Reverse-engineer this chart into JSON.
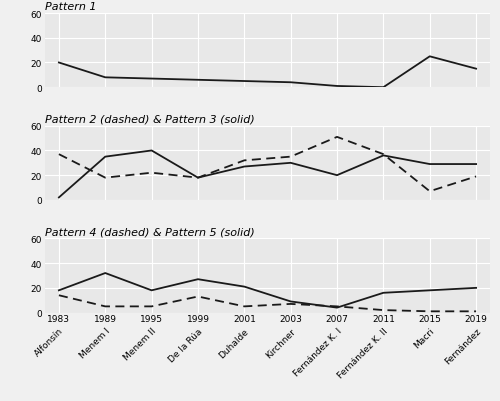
{
  "x_labels": [
    "Alfonsín",
    "Menem I",
    "Menem II",
    "De la Rúa",
    "Duhalde",
    "Kirchner",
    "Fernández K. I",
    "Fernández K. II",
    "Macri",
    "Fernández"
  ],
  "x_years": [
    1983,
    1989,
    1995,
    1999,
    2001,
    2003,
    2007,
    2011,
    2015,
    2019
  ],
  "pattern1": [
    20,
    8,
    7,
    6,
    5,
    4,
    1,
    0,
    25,
    15
  ],
  "pattern2_dashed": [
    37,
    18,
    22,
    18,
    32,
    35,
    51,
    37,
    7,
    19
  ],
  "pattern3_solid": [
    2,
    35,
    40,
    18,
    27,
    30,
    20,
    36,
    29,
    29
  ],
  "pattern4_dashed": [
    14,
    5,
    5,
    13,
    5,
    7,
    5,
    2,
    1,
    1
  ],
  "pattern5_solid": [
    18,
    32,
    18,
    27,
    21,
    9,
    4,
    16,
    18,
    20
  ],
  "ylim": [
    0,
    60
  ],
  "yticks": [
    0,
    20,
    40,
    60
  ],
  "title1": "Pattern 1",
  "title2": "Pattern 2 (dashed) & Pattern 3 (solid)",
  "title3": "Pattern 4 (dashed) & Pattern 5 (solid)",
  "bg_color": "#e8e8e8",
  "line_color": "#1a1a1a",
  "grid_color": "#ffffff",
  "fig_bg_color": "#f0f0f0",
  "title_fontsize": 8,
  "tick_fontsize": 6.5,
  "line_width": 1.3
}
